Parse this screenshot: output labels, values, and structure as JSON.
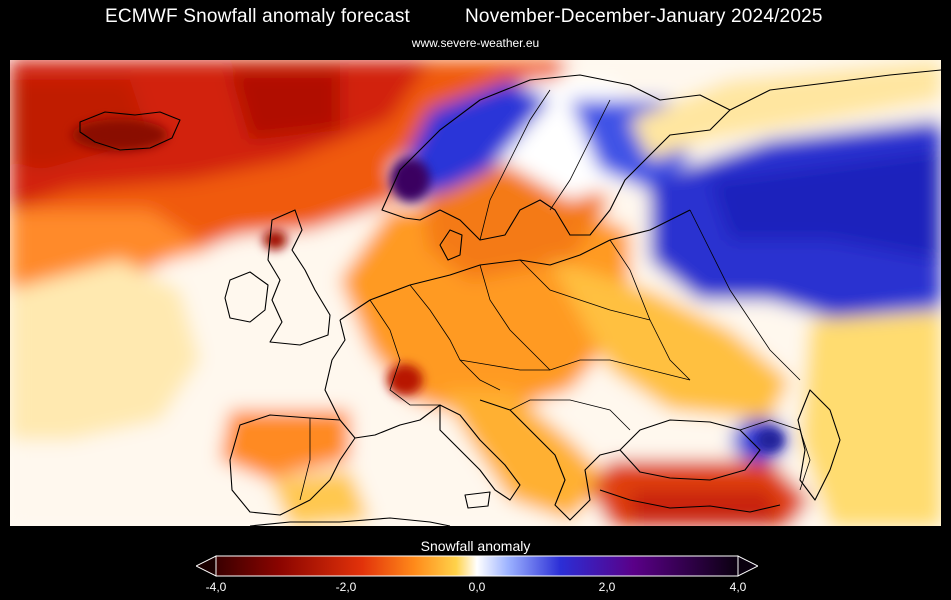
{
  "header": {
    "title_left": "ECMWF Snowfall anomaly forecast",
    "title_right": "November-December-January 2024/2025",
    "source": "www.severe-weather.eu"
  },
  "legend": {
    "title": "Snowfall anomaly",
    "ticks": [
      "-4,0",
      "-2,0",
      "0,0",
      "2,0",
      "4,0"
    ],
    "min": -4.0,
    "max": 4.0,
    "colors": {
      "strong_negative": "#3a0000",
      "negative": "#c81e00",
      "mild_negative": "#ff7a1a",
      "slight_negative": "#ffd24a",
      "neutral": "#ffffff",
      "slight_positive": "#7f9cff",
      "positive": "#2b2ed6",
      "strong_positive": "#3a0058",
      "extreme_positive": "#0a000f"
    }
  },
  "map": {
    "region": "Europe",
    "variable": "Snowfall anomaly",
    "border_color": "#000000"
  }
}
